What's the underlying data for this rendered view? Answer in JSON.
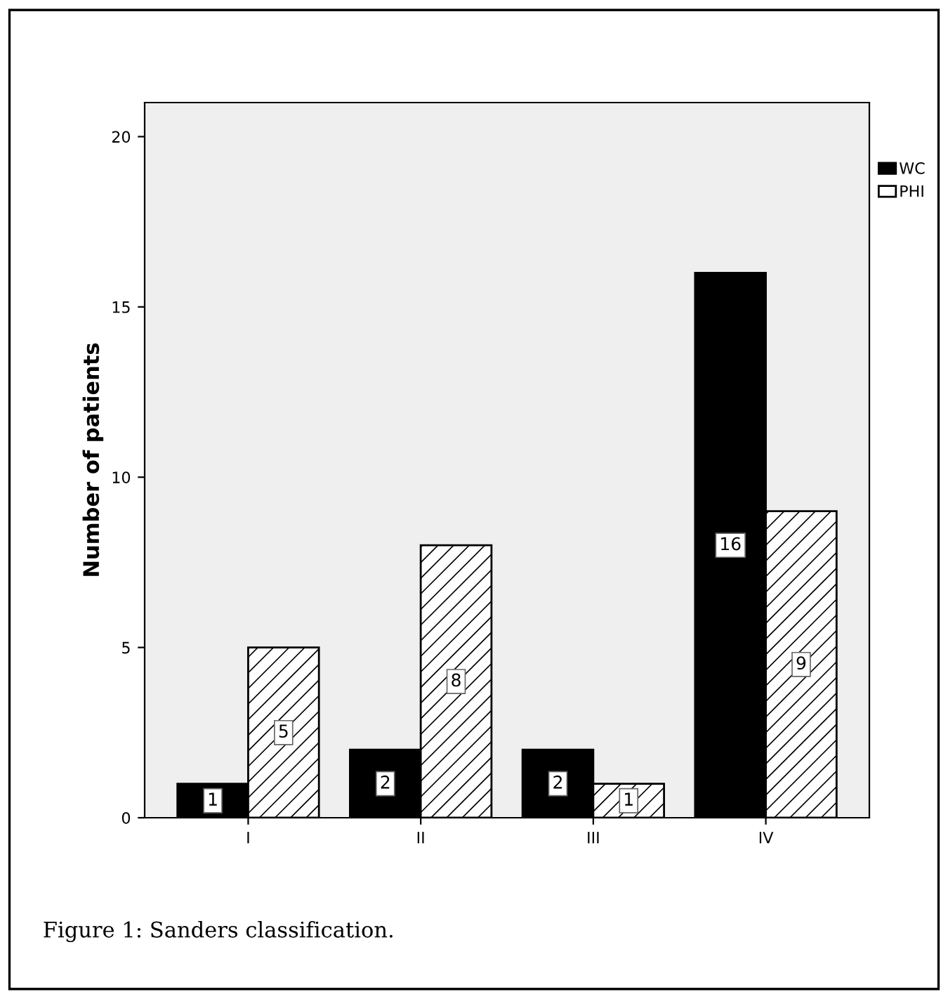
{
  "chart_data": {
    "type": "bar",
    "ylabel": "Number of patients",
    "categories": [
      "I",
      "II",
      "III",
      "IV"
    ],
    "series": [
      {
        "name": "WC",
        "color": "#000000",
        "values": [
          1,
          2,
          2,
          16
        ]
      },
      {
        "name": "PHI",
        "color": "#ffffff",
        "values": [
          5,
          8,
          1,
          9
        ]
      }
    ],
    "ylim": [
      0,
      21
    ],
    "yticks": [
      0,
      5,
      10,
      15,
      20
    ],
    "data_labels": true,
    "legend": "top right",
    "grid": false,
    "annotations": [
      "Figure 1: Sanders classification."
    ]
  }
}
